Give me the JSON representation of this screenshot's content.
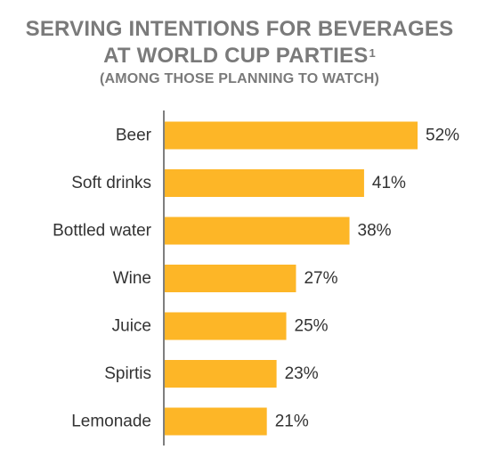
{
  "title_line1": "SERVING INTENTIONS FOR BEVERAGES",
  "title_line2": "AT WORLD CUP PARTIES",
  "title_footnote": "1",
  "subtitle": "(AMONG THOSE PLANNING TO WATCH)",
  "colors": {
    "bar": "#FDB627",
    "axis": "#555555",
    "title": "#7a7a7a",
    "text": "#333333"
  },
  "chart_data": {
    "type": "bar",
    "orientation": "horizontal",
    "title": "SERVING INTENTIONS FOR BEVERAGES AT WORLD CUP PARTIES",
    "subtitle": "(AMONG THOSE PLANNING TO WATCH)",
    "categories": [
      "Beer",
      "Soft drinks",
      "Bottled water",
      "Wine",
      "Juice",
      "Spirtis",
      "Lemonade"
    ],
    "values": [
      52,
      41,
      38,
      27,
      25,
      23,
      21
    ],
    "value_labels": [
      "52%",
      "41%",
      "38%",
      "27%",
      "25%",
      "23%",
      "21%"
    ],
    "unit": "%",
    "xlim": [
      0,
      52
    ],
    "grid": false,
    "legend": "none"
  }
}
